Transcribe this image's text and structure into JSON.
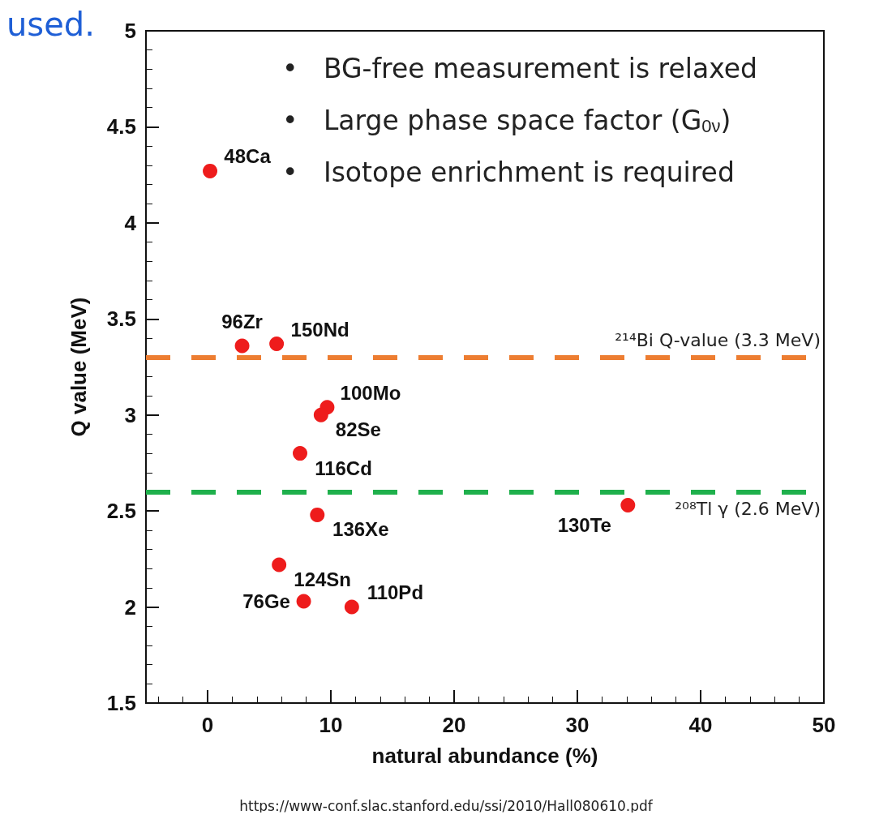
{
  "chart_data": {
    "type": "scatter",
    "xlabel": "natural abundance (%)",
    "ylabel": "Q value (MeV)",
    "x": [
      0.2,
      2.8,
      5.6,
      9.7,
      9.2,
      7.5,
      34.1,
      8.9,
      5.8,
      7.8,
      11.7
    ],
    "series": [
      {
        "color": "#ee1c1c",
        "values": [
          4.27,
          3.36,
          3.37,
          3.04,
          3.0,
          2.8,
          2.53,
          2.48,
          2.22,
          2.03,
          2.0
        ]
      }
    ],
    "marker": "circle",
    "xlim": [
      -5,
      50
    ],
    "xticks": [
      0,
      10,
      20,
      30,
      40,
      50
    ],
    "ylim": [
      1.5,
      5
    ],
    "yticks": [
      1.5,
      2,
      2.5,
      3,
      3.5,
      4,
      4.5,
      5
    ],
    "grid": false,
    "ref_lines": [
      {
        "axis": "y",
        "value": 3.3,
        "label": "²¹⁴Bi Q-value (3.3 MeV)",
        "color": "#ed7d31",
        "line_style": "dashed"
      },
      {
        "axis": "y",
        "value": 2.6,
        "label": "²⁰⁸Tl γ (2.6 MeV)",
        "color": "#1fb04c",
        "line_style": "dashed"
      }
    ],
    "annotations": [
      "used.",
      "•   BG-free measurement is relaxed",
      "•   Large phase space factor (G$_{0ν}$)",
      "•   Isotope enrichment is required",
      "https://www-conf.slac.stanford.edu/ssi/2010/Hall080610.pdf",
      {
        "text": "48Ca",
        "x": 0.2,
        "y": 4.27
      },
      {
        "text": "96Zr",
        "x": 2.8,
        "y": 3.36
      },
      {
        "text": "150Nd",
        "x": 5.6,
        "y": 3.37
      },
      {
        "text": "100Mo",
        "x": 9.7,
        "y": 3.04
      },
      {
        "text": "82Se",
        "x": 9.2,
        "y": 3.0
      },
      {
        "text": "116Cd",
        "x": 7.5,
        "y": 2.8
      },
      {
        "text": "130Te",
        "x": 34.1,
        "y": 2.53
      },
      {
        "text": "136Xe",
        "x": 8.9,
        "y": 2.48
      },
      {
        "text": "124Sn",
        "x": 5.8,
        "y": 2.22
      },
      {
        "text": "76Ge",
        "x": 7.8,
        "y": 2.03
      },
      {
        "text": "110Pd",
        "x": 11.7,
        "y": 2.0
      }
    ]
  }
}
